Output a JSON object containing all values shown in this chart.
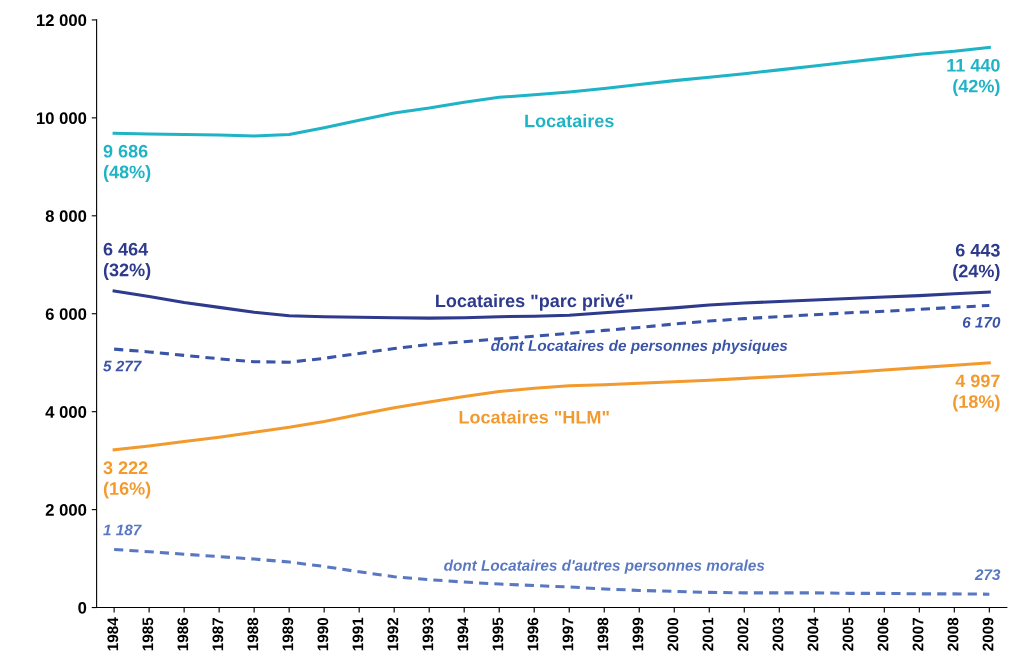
{
  "chart_data": {
    "type": "line",
    "categories": [
      "1984",
      "1985",
      "1986",
      "1987",
      "1988",
      "1989",
      "1990",
      "1991",
      "1992",
      "1993",
      "1994",
      "1995",
      "1996",
      "1997",
      "1998",
      "1999",
      "2000",
      "2001",
      "2002",
      "2003",
      "2004",
      "2005",
      "2006",
      "2007",
      "2008",
      "2009"
    ],
    "ylim": [
      0,
      12000
    ],
    "yticks": [
      0,
      {
        "value": 2000,
        "label": "2 000"
      },
      {
        "value": 4000,
        "label": "4 000"
      },
      {
        "value": 6000,
        "label": "6 000"
      },
      {
        "value": 8000,
        "label": "8 000"
      },
      {
        "value": 10000,
        "label": "10 000"
      },
      {
        "value": 12000,
        "label": "12 000"
      }
    ],
    "grid": false,
    "marker": "none",
    "series": [
      {
        "name": "Locataires",
        "color": "#1fb3c6",
        "line_style": "solid",
        "values": [
          9686,
          9670,
          9660,
          9650,
          9630,
          9660,
          9800,
          9950,
          10100,
          10200,
          10320,
          10420,
          10470,
          10530,
          10600,
          10680,
          10760,
          10830,
          10900,
          10980,
          11060,
          11140,
          11220,
          11300,
          11360,
          11440
        ],
        "value_labels": [
          "9 686\n(48%)",
          null,
          null,
          null,
          null,
          null,
          null,
          null,
          null,
          null,
          null,
          null,
          null,
          null,
          null,
          null,
          null,
          null,
          null,
          null,
          null,
          null,
          null,
          null,
          null,
          "11 440\n(42%)"
        ]
      },
      {
        "name": "Locataires \"parc privé\"",
        "color": "#2e3a8c",
        "line_style": "solid",
        "values": [
          6464,
          6350,
          6230,
          6130,
          6030,
          5960,
          5940,
          5930,
          5920,
          5910,
          5920,
          5940,
          5950,
          5970,
          6020,
          6070,
          6120,
          6180,
          6220,
          6250,
          6280,
          6310,
          6340,
          6370,
          6410,
          6443
        ],
        "value_labels": [
          "6 464\n(32%)",
          null,
          null,
          null,
          null,
          null,
          null,
          null,
          null,
          null,
          null,
          null,
          null,
          null,
          null,
          null,
          null,
          null,
          null,
          null,
          null,
          null,
          null,
          null,
          null,
          "6 443\n(24%)"
        ]
      },
      {
        "name": "dont Locataires de personnes physiques",
        "color": "#3a55a8",
        "line_style": "dashed",
        "values": [
          5277,
          5220,
          5150,
          5080,
          5020,
          5010,
          5090,
          5190,
          5290,
          5370,
          5430,
          5490,
          5540,
          5600,
          5660,
          5720,
          5790,
          5850,
          5900,
          5940,
          5980,
          6020,
          6050,
          6090,
          6130,
          6170
        ],
        "value_labels": [
          "5 277",
          null,
          null,
          null,
          null,
          null,
          null,
          null,
          null,
          null,
          null,
          null,
          null,
          null,
          null,
          null,
          null,
          null,
          null,
          null,
          null,
          null,
          null,
          null,
          null,
          "6 170"
        ]
      },
      {
        "name": "Locataires \"HLM\"",
        "color": "#f39a2e",
        "line_style": "solid",
        "values": [
          3222,
          3300,
          3390,
          3480,
          3580,
          3680,
          3800,
          3940,
          4080,
          4200,
          4310,
          4410,
          4480,
          4530,
          4550,
          4580,
          4610,
          4640,
          4680,
          4720,
          4760,
          4800,
          4850,
          4900,
          4950,
          4997
        ],
        "value_labels": [
          "3 222\n(16%)",
          null,
          null,
          null,
          null,
          null,
          null,
          null,
          null,
          null,
          null,
          null,
          null,
          null,
          null,
          null,
          null,
          null,
          null,
          null,
          null,
          null,
          null,
          null,
          null,
          "4 997\n(18%)"
        ]
      },
      {
        "name": "dont Locataires d'autres personnes morales",
        "color": "#5a78c2",
        "line_style": "dashed",
        "values": [
          1187,
          1140,
          1090,
          1040,
          990,
          930,
          840,
          730,
          630,
          570,
          520,
          480,
          450,
          420,
          380,
          350,
          330,
          310,
          300,
          300,
          300,
          290,
          290,
          280,
          280,
          273
        ],
        "value_labels": [
          "1 187",
          null,
          null,
          null,
          null,
          null,
          null,
          null,
          null,
          null,
          null,
          null,
          null,
          null,
          null,
          null,
          null,
          null,
          null,
          null,
          null,
          null,
          null,
          null,
          null,
          "273"
        ]
      }
    ]
  }
}
